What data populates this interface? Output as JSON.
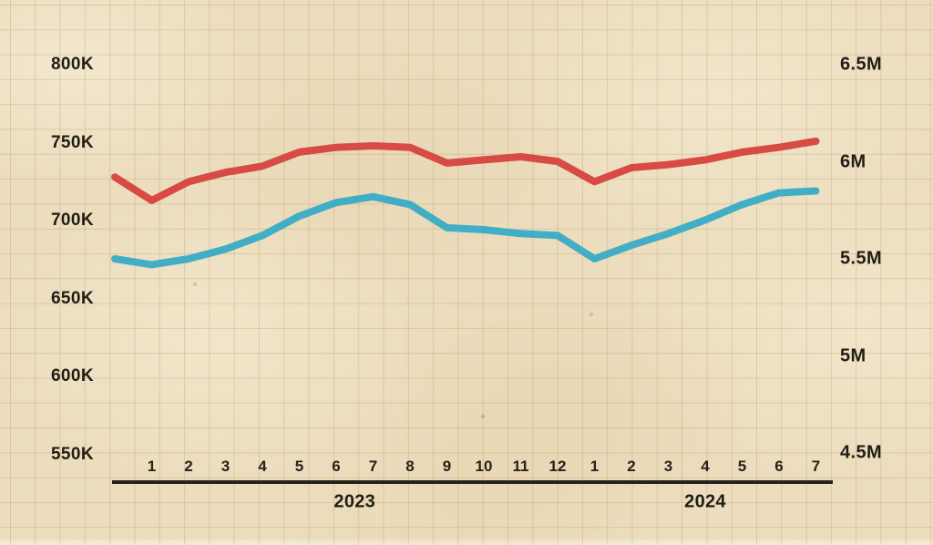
{
  "chart_data": {
    "type": "line",
    "title": "",
    "legend": false,
    "grid": true,
    "categories": [
      "",
      "1",
      "2",
      "3",
      "4",
      "5",
      "6",
      "7",
      "8",
      "9",
      "10",
      "11",
      "12",
      "1",
      "2",
      "3",
      "4",
      "5",
      "6",
      "7"
    ],
    "first_point_unlabeled": true,
    "x_tick_groups": [
      {
        "year": "2023",
        "start_index": 1,
        "months": [
          "1",
          "2",
          "3",
          "4",
          "5",
          "6",
          "7",
          "8",
          "9",
          "10",
          "11",
          "12"
        ]
      },
      {
        "year": "2024",
        "start_index": 13,
        "months": [
          "1",
          "2",
          "3",
          "4",
          "5",
          "6",
          "7"
        ]
      }
    ],
    "left_axis": {
      "unit": "K",
      "tick_labels": [
        "800K",
        "750K",
        "700K",
        "650K",
        "600K",
        "550K"
      ],
      "tick_values": [
        800,
        750,
        700,
        650,
        600,
        550
      ],
      "range": [
        550,
        800
      ]
    },
    "right_axis": {
      "unit": "M",
      "tick_labels": [
        "6.5M",
        "6M",
        "5.5M",
        "5M",
        "4.5M"
      ],
      "tick_values": [
        6.5,
        6,
        5.5,
        5,
        4.5
      ],
      "range": [
        4.5,
        6.5
      ]
    },
    "series": [
      {
        "id": "red-line",
        "name": "red series (left axis, thousands)",
        "axis": "left",
        "color": "#d84a44",
        "values": [
          728,
          713,
          725,
          731,
          735,
          744,
          747,
          748,
          747,
          737,
          739,
          741,
          738,
          725,
          734,
          736,
          739,
          744,
          747,
          751
        ]
      },
      {
        "id": "blue-line",
        "name": "blue series (right axis, millions)",
        "axis": "right",
        "color": "#41aec6",
        "values": [
          5.5,
          5.47,
          5.5,
          5.55,
          5.62,
          5.72,
          5.79,
          5.82,
          5.78,
          5.66,
          5.65,
          5.63,
          5.62,
          5.5,
          5.57,
          5.63,
          5.7,
          5.78,
          5.84,
          5.85
        ]
      }
    ],
    "colors": {
      "paper": "#ecddbe",
      "grid": "#917144",
      "text": "#211d15",
      "axis_line": "#26221b",
      "red": "#d84a44",
      "blue": "#41aec6"
    }
  }
}
